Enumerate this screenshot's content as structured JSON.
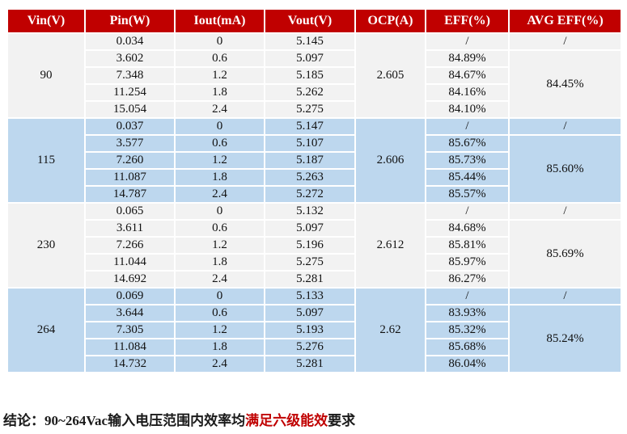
{
  "colors": {
    "header_bg": "#C00000",
    "header_text": "#FFFFFF",
    "group_light_bg": "#F2F2F2",
    "group_blue_bg": "#BDD7EE",
    "conclusion_highlight": "#C00000"
  },
  "table": {
    "headers": [
      "Vin(V)",
      "Pin(W)",
      "Iout(mA)",
      "Vout(V)",
      "OCP(A)",
      "EFF(%)",
      "AVG EFF(%)"
    ],
    "groups": [
      {
        "vin": "90",
        "ocp": "2.605",
        "avg_eff_first": "/",
        "avg_eff": "84.45%",
        "rows": [
          {
            "pin": "0.034",
            "iout": "0",
            "vout": "5.145",
            "eff": "/"
          },
          {
            "pin": "3.602",
            "iout": "0.6",
            "vout": "5.097",
            "eff": "84.89%"
          },
          {
            "pin": "7.348",
            "iout": "1.2",
            "vout": "5.185",
            "eff": "84.67%"
          },
          {
            "pin": "11.254",
            "iout": "1.8",
            "vout": "5.262",
            "eff": "84.16%"
          },
          {
            "pin": "15.054",
            "iout": "2.4",
            "vout": "5.275",
            "eff": "84.10%"
          }
        ]
      },
      {
        "vin": "115",
        "ocp": "2.606",
        "avg_eff_first": "/",
        "avg_eff": "85.60%",
        "rows": [
          {
            "pin": "0.037",
            "iout": "0",
            "vout": "5.147",
            "eff": "/"
          },
          {
            "pin": "3.577",
            "iout": "0.6",
            "vout": "5.107",
            "eff": "85.67%"
          },
          {
            "pin": "7.260",
            "iout": "1.2",
            "vout": "5.187",
            "eff": "85.73%"
          },
          {
            "pin": "11.087",
            "iout": "1.8",
            "vout": "5.263",
            "eff": "85.44%"
          },
          {
            "pin": "14.787",
            "iout": "2.4",
            "vout": "5.272",
            "eff": "85.57%"
          }
        ]
      },
      {
        "vin": "230",
        "ocp": "2.612",
        "avg_eff_first": "/",
        "avg_eff": "85.69%",
        "rows": [
          {
            "pin": "0.065",
            "iout": "0",
            "vout": "5.132",
            "eff": "/"
          },
          {
            "pin": "3.611",
            "iout": "0.6",
            "vout": "5.097",
            "eff": "84.68%"
          },
          {
            "pin": "7.266",
            "iout": "1.2",
            "vout": "5.196",
            "eff": "85.81%"
          },
          {
            "pin": "11.044",
            "iout": "1.8",
            "vout": "5.275",
            "eff": "85.97%"
          },
          {
            "pin": "14.692",
            "iout": "2.4",
            "vout": "5.281",
            "eff": "86.27%"
          }
        ]
      },
      {
        "vin": "264",
        "ocp": "2.62",
        "avg_eff_first": "/",
        "avg_eff": "85.24%",
        "rows": [
          {
            "pin": "0.069",
            "iout": "0",
            "vout": "5.133",
            "eff": "/"
          },
          {
            "pin": "3.644",
            "iout": "0.6",
            "vout": "5.097",
            "eff": "83.93%"
          },
          {
            "pin": "7.305",
            "iout": "1.2",
            "vout": "5.193",
            "eff": "85.32%"
          },
          {
            "pin": "11.084",
            "iout": "1.8",
            "vout": "5.276",
            "eff": "85.68%"
          },
          {
            "pin": "14.732",
            "iout": "2.4",
            "vout": "5.281",
            "eff": "86.04%"
          }
        ]
      }
    ]
  },
  "conclusion": {
    "label": "结论：",
    "text_before": "90~264Vac输入电压范围内效率均",
    "highlight": "满足六级能效",
    "text_after": "要求"
  }
}
